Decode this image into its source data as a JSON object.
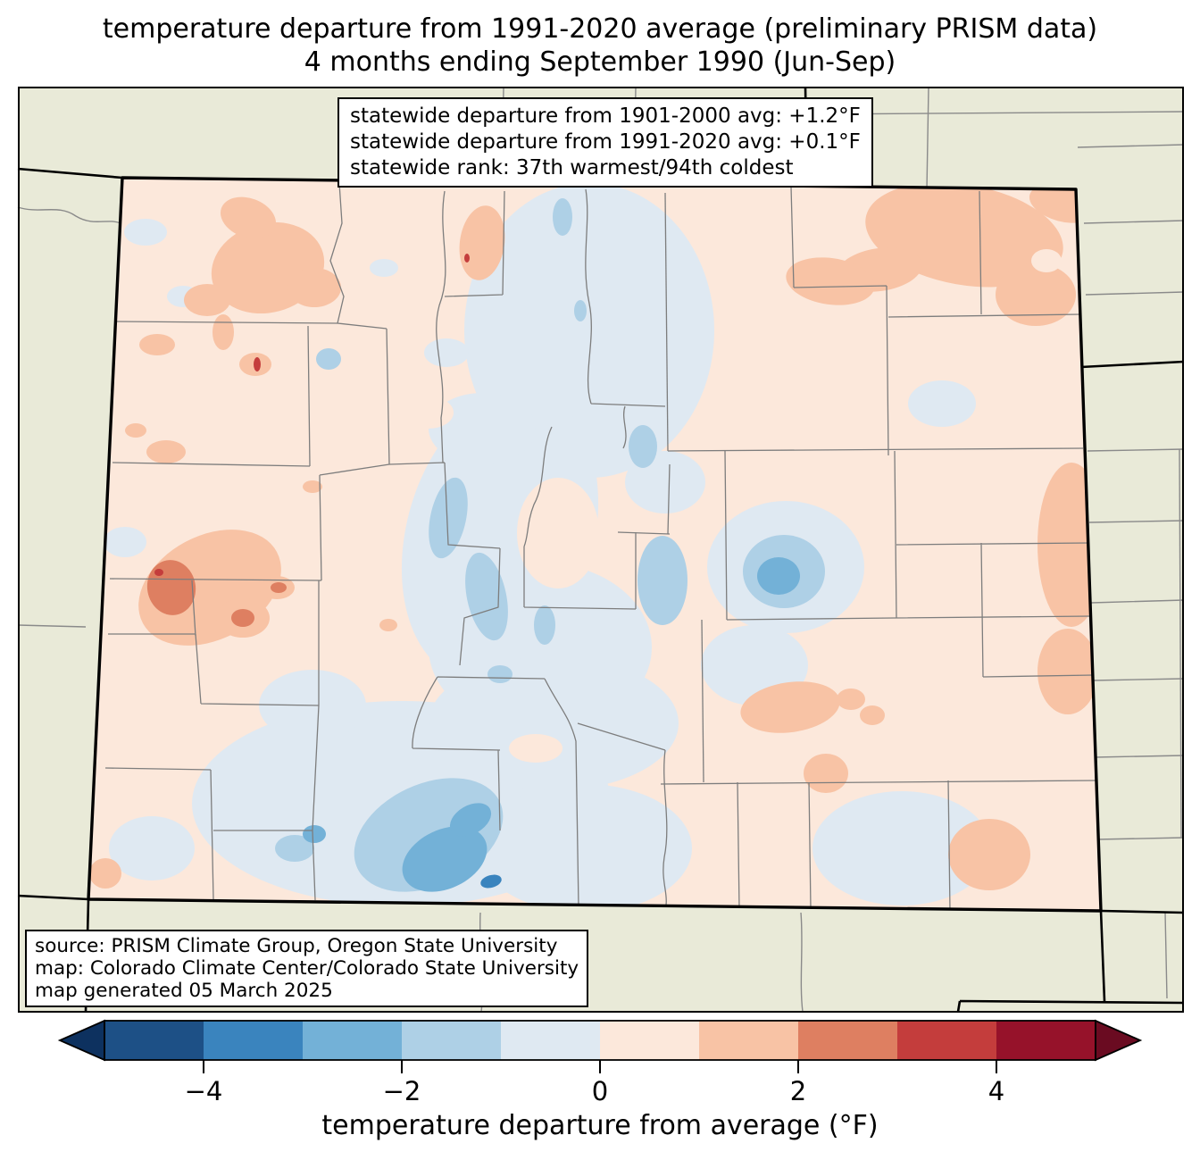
{
  "title": {
    "line1": "temperature departure from 1991-2020 average (preliminary PRISM data)",
    "line2": "4 months ending September 1990 (Jun-Sep)"
  },
  "stats_box": {
    "lines": [
      "statewide departure from 1901-2000 avg: +1.2°F",
      "statewide departure from 1991-2020 avg: +0.1°F",
      "statewide rank: 37th warmest/94th coldest"
    ]
  },
  "source_box": {
    "lines": [
      "source: PRISM Climate Group, Oregon State University",
      "map: Colorado Climate Center/Colorado State University",
      "map generated 05 March 2025"
    ]
  },
  "colorbar": {
    "label": "temperature departure from average (°F)",
    "range": [
      -5,
      5
    ],
    "ticks": [
      {
        "value": -4,
        "label": "−4"
      },
      {
        "value": -2,
        "label": "−2"
      },
      {
        "value": 0,
        "label": "0"
      },
      {
        "value": 2,
        "label": "2"
      },
      {
        "value": 4,
        "label": "4"
      }
    ],
    "segment_colors": [
      "#1d5086",
      "#3a84be",
      "#73b1d7",
      "#aed0e6",
      "#dfe9f2",
      "#fce8db",
      "#f8c3a5",
      "#de7f61",
      "#c43d3c",
      "#96122a"
    ],
    "under_arrow_color": "#0d315f",
    "over_arrow_color": "#6a0b21",
    "outline_color": "#000000"
  },
  "map": {
    "region": "Colorado",
    "background_color": "#e9ead8",
    "state_base_fill": "#fce8db",
    "state_border_color": "#000000",
    "county_line_color": "#7d7d7d",
    "palette": {
      "light_blue": "#dfe9f2",
      "medium_blue": "#aed0e6",
      "deep_blue": "#73b1d7",
      "deepest_blue": "#3a84be",
      "base_pink": "#fce8db",
      "peach": "#f8c3a5",
      "salmon": "#de7f61",
      "red": "#c43d3c"
    }
  }
}
